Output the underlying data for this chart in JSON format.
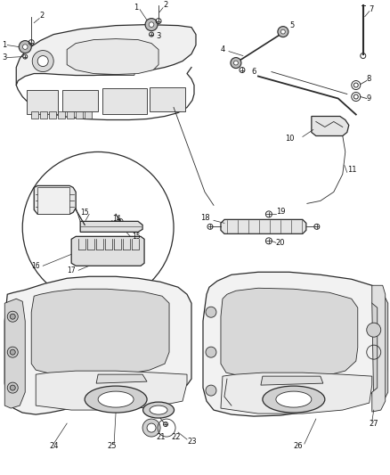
{
  "bg_color": "#ffffff",
  "line_color": "#2a2a2a",
  "label_color": "#111111",
  "fig_width": 4.38,
  "fig_height": 5.33,
  "dpi": 100,
  "fs": 6.0,
  "lw_thin": 0.6,
  "lw_med": 0.9,
  "lw_thick": 1.3
}
